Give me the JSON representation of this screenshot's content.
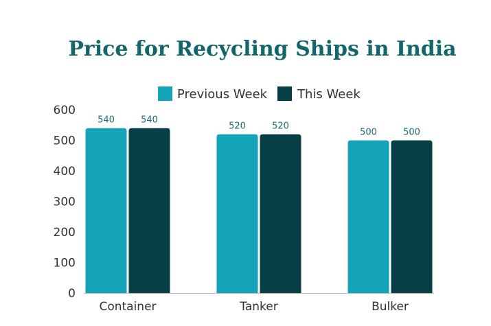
{
  "chart_data": {
    "type": "bar",
    "title": "Price for Recycling Ships in India",
    "categories": [
      "Container",
      "Tanker",
      "Bulker"
    ],
    "series": [
      {
        "name": "Previous Week",
        "values": [
          540,
          520,
          500
        ],
        "color": "#14a3b8"
      },
      {
        "name": "This Week",
        "values": [
          540,
          520,
          500
        ],
        "color": "#064046"
      }
    ],
    "yticks": [
      "0",
      "100",
      "200",
      "300",
      "400",
      "500",
      "600"
    ],
    "ylim": [
      0,
      600
    ],
    "xlabel": "",
    "ylabel": "",
    "legend_position": "top-center",
    "grid": false,
    "title_color": "#13666c",
    "label_color": "#1d6b74"
  }
}
